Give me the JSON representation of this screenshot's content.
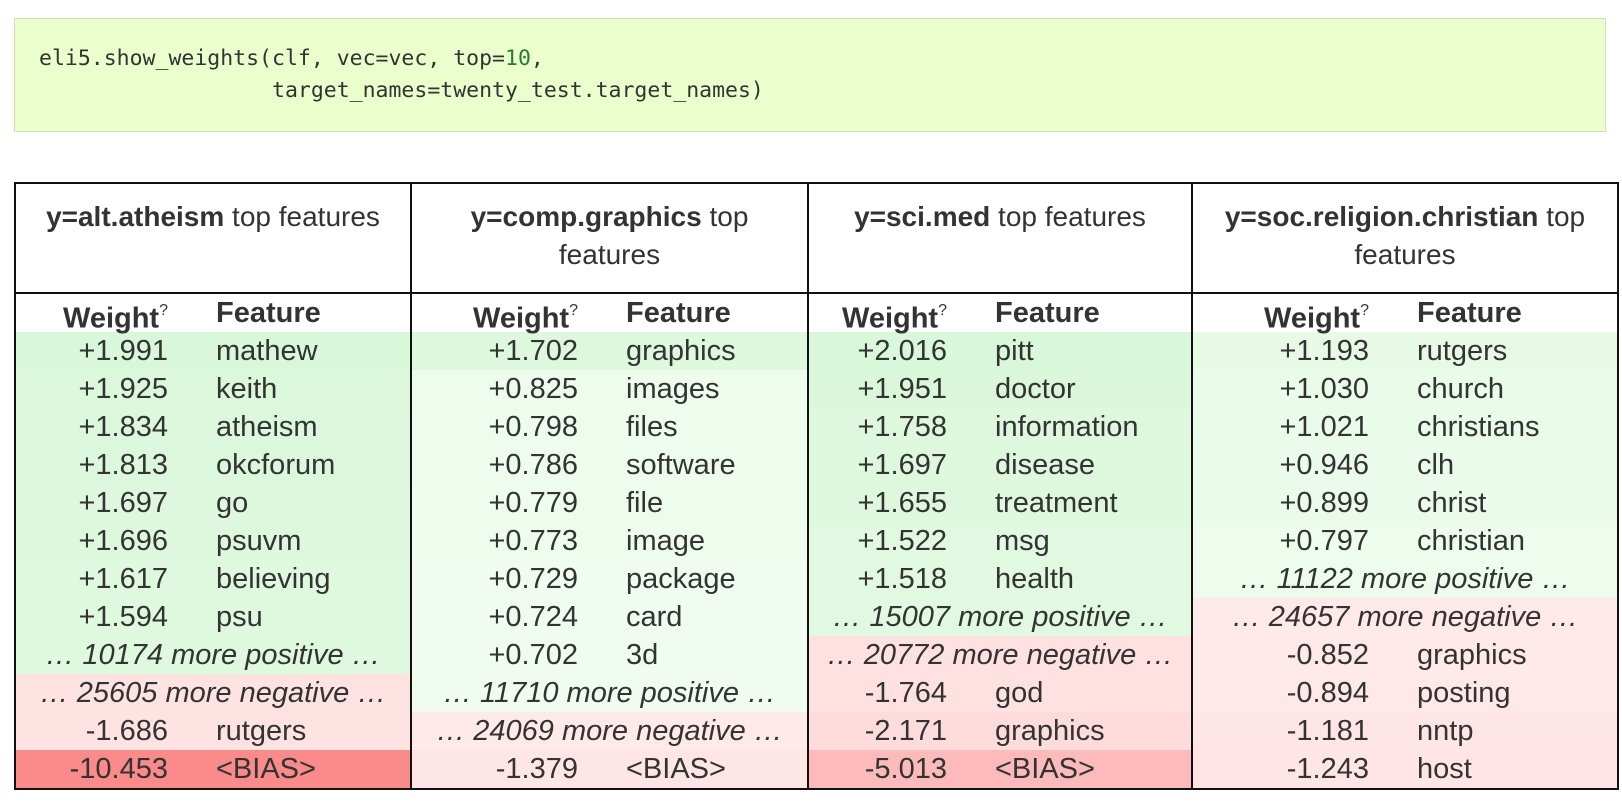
{
  "code": {
    "line1_prefix": "eli5.show_weights(clf, vec=vec, top=",
    "line1_number": "10",
    "line1_suffix": ",",
    "line2": "                  target_names=twenty_test.target_names)"
  },
  "tables": [
    {
      "label_bold": "y=alt.atheism",
      "label_rest": " top features",
      "col_weight": "Weight",
      "col_weight_sup": "?",
      "col_feature": "Feature",
      "rows": [
        {
          "type": "feat",
          "weight": "+1.991",
          "feature": "mathew",
          "color": "#d9f7d9"
        },
        {
          "type": "feat",
          "weight": "+1.925",
          "feature": "keith",
          "color": "#dbf8db"
        },
        {
          "type": "feat",
          "weight": "+1.834",
          "feature": "atheism",
          "color": "#dcf8dc"
        },
        {
          "type": "feat",
          "weight": "+1.813",
          "feature": "okcforum",
          "color": "#dcf8dc"
        },
        {
          "type": "feat",
          "weight": "+1.697",
          "feature": "go",
          "color": "#def8de"
        },
        {
          "type": "feat",
          "weight": "+1.696",
          "feature": "psuvm",
          "color": "#def8de"
        },
        {
          "type": "feat",
          "weight": "+1.617",
          "feature": "believing",
          "color": "#dff9df"
        },
        {
          "type": "feat",
          "weight": "+1.594",
          "feature": "psu",
          "color": "#dff9df"
        },
        {
          "type": "more",
          "text": "… 10174 more positive …",
          "color": "#dff9df"
        },
        {
          "type": "more",
          "text": "… 25605 more negative …",
          "color": "#ffe3e3"
        },
        {
          "type": "feat",
          "weight": "-1.686",
          "feature": "rutgers",
          "color": "#ffe2e2"
        },
        {
          "type": "feat",
          "weight": "-10.453",
          "feature": "<BIAS>",
          "color": "#fb8a8a"
        }
      ]
    },
    {
      "label_bold": "y=comp.graphics",
      "label_rest": " top features",
      "col_weight": "Weight",
      "col_weight_sup": "?",
      "col_feature": "Feature",
      "rows": [
        {
          "type": "feat",
          "weight": "+1.702",
          "feature": "graphics",
          "color": "#def8de"
        },
        {
          "type": "feat",
          "weight": "+0.825",
          "feature": "images",
          "color": "#edfced"
        },
        {
          "type": "feat",
          "weight": "+0.798",
          "feature": "files",
          "color": "#eefced"
        },
        {
          "type": "feat",
          "weight": "+0.786",
          "feature": "software",
          "color": "#eefcee"
        },
        {
          "type": "feat",
          "weight": "+0.779",
          "feature": "file",
          "color": "#eefcee"
        },
        {
          "type": "feat",
          "weight": "+0.773",
          "feature": "image",
          "color": "#eefcee"
        },
        {
          "type": "feat",
          "weight": "+0.729",
          "feature": "package",
          "color": "#effcef"
        },
        {
          "type": "feat",
          "weight": "+0.724",
          "feature": "card",
          "color": "#effcef"
        },
        {
          "type": "feat",
          "weight": "+0.702",
          "feature": "3d",
          "color": "#effcef"
        },
        {
          "type": "more",
          "text": "… 11710 more positive …",
          "color": "#effcef"
        },
        {
          "type": "more",
          "text": "… 24069 more negative …",
          "color": "#ffe9e9"
        },
        {
          "type": "feat",
          "weight": "-1.379",
          "feature": "<BIAS>",
          "color": "#ffe6e6"
        }
      ]
    },
    {
      "label_bold": "y=sci.med",
      "label_rest": " top features",
      "col_weight": "Weight",
      "col_weight_sup": "?",
      "col_feature": "Feature",
      "rows": [
        {
          "type": "feat",
          "weight": "+2.016",
          "feature": "pitt",
          "color": "#d9f7d9"
        },
        {
          "type": "feat",
          "weight": "+1.951",
          "feature": "doctor",
          "color": "#daf7da"
        },
        {
          "type": "feat",
          "weight": "+1.758",
          "feature": "information",
          "color": "#ddf8dd"
        },
        {
          "type": "feat",
          "weight": "+1.697",
          "feature": "disease",
          "color": "#def8de"
        },
        {
          "type": "feat",
          "weight": "+1.655",
          "feature": "treatment",
          "color": "#def8de"
        },
        {
          "type": "feat",
          "weight": "+1.522",
          "feature": "msg",
          "color": "#e0f9e0"
        },
        {
          "type": "feat",
          "weight": "+1.518",
          "feature": "health",
          "color": "#e0f9e0"
        },
        {
          "type": "more",
          "text": "… 15007 more positive …",
          "color": "#e0f9e0"
        },
        {
          "type": "more",
          "text": "… 20772 more negative …",
          "color": "#ffe1e1"
        },
        {
          "type": "feat",
          "weight": "-1.764",
          "feature": "god",
          "color": "#ffe1e1"
        },
        {
          "type": "feat",
          "weight": "-2.171",
          "feature": "graphics",
          "color": "#ffdcdc"
        },
        {
          "type": "feat",
          "weight": "-5.013",
          "feature": "<BIAS>",
          "color": "#fdbaba"
        }
      ]
    },
    {
      "label_bold": "y=soc.religion.christian",
      "label_rest": " top features",
      "col_weight": "Weight",
      "col_weight_sup": "?",
      "col_feature": "Feature",
      "rows": [
        {
          "type": "feat",
          "weight": "+1.193",
          "feature": "rutgers",
          "color": "#e6fae6"
        },
        {
          "type": "feat",
          "weight": "+1.030",
          "feature": "church",
          "color": "#e9fbe9"
        },
        {
          "type": "feat",
          "weight": "+1.021",
          "feature": "christians",
          "color": "#e9fbe9"
        },
        {
          "type": "feat",
          "weight": "+0.946",
          "feature": "clh",
          "color": "#ebfbeb"
        },
        {
          "type": "feat",
          "weight": "+0.899",
          "feature": "christ",
          "color": "#ebfbeb"
        },
        {
          "type": "feat",
          "weight": "+0.797",
          "feature": "christian",
          "color": "#eefcee"
        },
        {
          "type": "more",
          "text": "… 11122 more positive …",
          "color": "#eefcee"
        },
        {
          "type": "more",
          "text": "… 24657 more negative …",
          "color": "#ffe9e9"
        },
        {
          "type": "feat",
          "weight": "-0.852",
          "feature": "graphics",
          "color": "#ffe9e9"
        },
        {
          "type": "feat",
          "weight": "-0.894",
          "feature": "posting",
          "color": "#ffe8e8"
        },
        {
          "type": "feat",
          "weight": "-1.181",
          "feature": "nntp",
          "color": "#ffe6e6"
        },
        {
          "type": "feat",
          "weight": "-1.243",
          "feature": "host",
          "color": "#ffe5e5"
        }
      ]
    }
  ]
}
